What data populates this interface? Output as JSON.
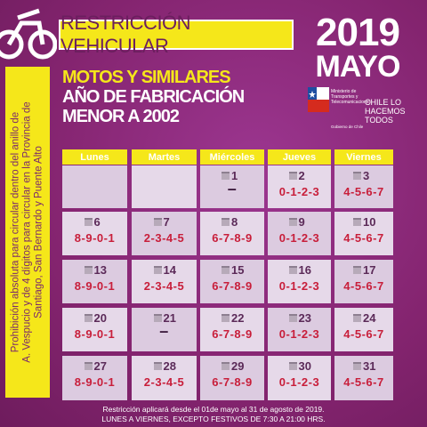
{
  "header": {
    "title": "RESTRICCIÓN VEHICULAR",
    "year": "2019",
    "month": "MAYO",
    "subtitle": [
      "MOTOS Y SIMILARES",
      "AÑO DE FABRICACIÓN",
      "MENOR A 2002"
    ],
    "logo": {
      "ministry": "Ministerio de Transportes y Telecomunicaciones",
      "government": "Gobierno de Chile",
      "slogan": "CHILE LO HACEMOS TODOS"
    }
  },
  "side_note": [
    "Prohibición absoluta para circular dentro del anillo de",
    "A. Vespucio y de 4 dígitos para circular en la Provincia de",
    "Santiago, San Bernardo y Puente Alto"
  ],
  "calendar": {
    "weekdays": [
      "Lunes",
      "Martes",
      "Miércoles",
      "Jueves",
      "Viernes"
    ],
    "rows": [
      [
        null,
        null,
        {
          "day": 1,
          "plates": "–"
        },
        {
          "day": 2,
          "plates": "0-1-2-3"
        },
        {
          "day": 3,
          "plates": "4-5-6-7"
        }
      ],
      [
        {
          "day": 6,
          "plates": "8-9-0-1"
        },
        {
          "day": 7,
          "plates": "2-3-4-5"
        },
        {
          "day": 8,
          "plates": "6-7-8-9"
        },
        {
          "day": 9,
          "plates": "0-1-2-3"
        },
        {
          "day": 10,
          "plates": "4-5-6-7"
        }
      ],
      [
        {
          "day": 13,
          "plates": "8-9-0-1"
        },
        {
          "day": 14,
          "plates": "2-3-4-5"
        },
        {
          "day": 15,
          "plates": "6-7-8-9"
        },
        {
          "day": 16,
          "plates": "0-1-2-3"
        },
        {
          "day": 17,
          "plates": "4-5-6-7"
        }
      ],
      [
        {
          "day": 20,
          "plates": "8-9-0-1"
        },
        {
          "day": 21,
          "plates": "–"
        },
        {
          "day": 22,
          "plates": "6-7-8-9"
        },
        {
          "day": 23,
          "plates": "0-1-2-3"
        },
        {
          "day": 24,
          "plates": "4-5-6-7"
        }
      ],
      [
        {
          "day": 27,
          "plates": "8-9-0-1"
        },
        {
          "day": 28,
          "plates": "2-3-4-5"
        },
        {
          "day": 29,
          "plates": "6-7-8-9"
        },
        {
          "day": 30,
          "plates": "0-1-2-3"
        },
        {
          "day": 31,
          "plates": "4-5-6-7"
        }
      ]
    ]
  },
  "footer": [
    "Restricción aplicará desde el 01de mayo al 31 de agosto de 2019.",
    "LUNES A VIERNES, EXCEPTO FESTIVOS DE 7:30 A 21:00 HRS."
  ]
}
